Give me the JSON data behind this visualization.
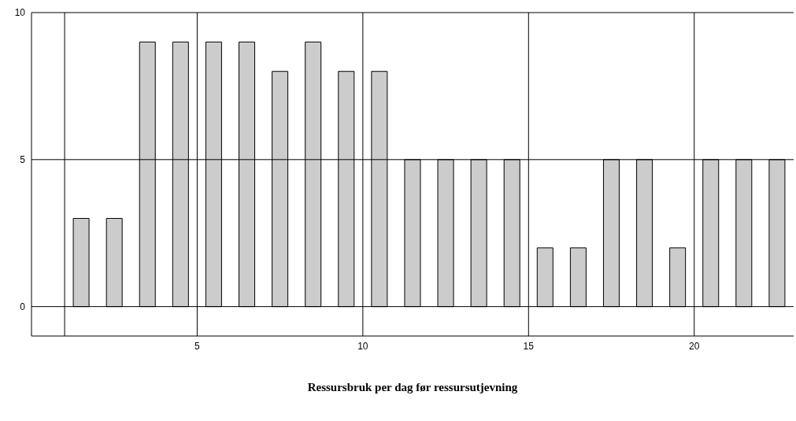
{
  "chart_data": {
    "type": "bar",
    "xlabel": "Ressursbruk per dag før ressursutjevning",
    "x": [
      1.5,
      2.5,
      3.5,
      4.5,
      5.5,
      6.5,
      7.5,
      8.5,
      9.5,
      10.5,
      11.5,
      12.5,
      13.5,
      14.5,
      15.5,
      16.5,
      17.5,
      18.5,
      19.5,
      20.5,
      21.5,
      22.5
    ],
    "values": [
      3,
      3,
      9,
      9,
      9,
      9,
      8,
      9,
      8,
      8,
      5,
      5,
      5,
      5,
      2,
      2,
      5,
      5,
      2,
      5,
      5,
      5
    ],
    "color": "#cccccc",
    "xlim": [
      0,
      23
    ],
    "xticks": [
      5,
      10,
      15,
      20
    ],
    "ylim": [
      -1,
      10
    ],
    "yticks": [
      0,
      5,
      10
    ],
    "grid": true,
    "ref_lines": [
      {
        "axis": "x",
        "value": 1,
        "color": "#000000"
      }
    ]
  }
}
